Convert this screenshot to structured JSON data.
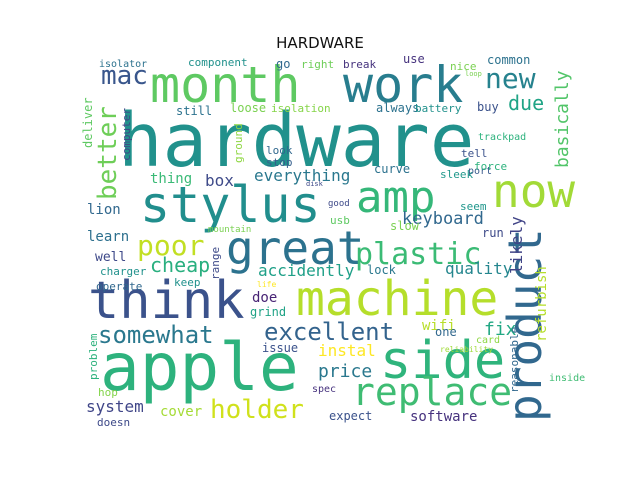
{
  "title": "HARDWARE",
  "words": [
    {
      "text": "hardware",
      "color": "#21918c"
    },
    {
      "text": "apple",
      "color": "#2db27d"
    },
    {
      "text": "think",
      "color": "#3b528b"
    },
    {
      "text": "machine",
      "color": "#b5de2b"
    },
    {
      "text": "month",
      "color": "#5ec962"
    },
    {
      "text": "work",
      "color": "#287d8e"
    },
    {
      "text": "stylus",
      "color": "#218e8d"
    },
    {
      "text": "great",
      "color": "#2c728e"
    },
    {
      "text": "side",
      "color": "#2fb47c"
    },
    {
      "text": "amp",
      "color": "#35b779"
    },
    {
      "text": "now",
      "color": "#a2da37"
    },
    {
      "text": "product",
      "color": "#31688e"
    },
    {
      "text": "replace",
      "color": "#3fbc73"
    },
    {
      "text": "poor",
      "color": "#c2df23"
    },
    {
      "text": "plastic",
      "color": "#3bbb75"
    },
    {
      "text": "excellent",
      "color": "#33638d"
    },
    {
      "text": "somewhat",
      "color": "#2a788e"
    },
    {
      "text": "holder",
      "color": "#d0e11c"
    },
    {
      "text": "better",
      "color": "#6ece58"
    },
    {
      "text": "mac",
      "color": "#39568c"
    },
    {
      "text": "new",
      "color": "#26828e"
    },
    {
      "text": "due",
      "color": "#20a486"
    },
    {
      "text": "basically",
      "color": "#52c569"
    },
    {
      "text": "cheap",
      "color": "#29af7f"
    },
    {
      "text": "accidently",
      "color": "#1fa088"
    },
    {
      "text": "quality",
      "color": "#24868e"
    },
    {
      "text": "keyboard",
      "color": "#31688e"
    },
    {
      "text": "likely",
      "color": "#414487"
    },
    {
      "text": "refurbish",
      "color": "#b5de2b"
    },
    {
      "text": "fix",
      "color": "#22a884"
    },
    {
      "text": "price",
      "color": "#2a788e"
    },
    {
      "text": "instal",
      "color": "#fde725"
    },
    {
      "text": "system",
      "color": "#404688"
    },
    {
      "text": "cover",
      "color": "#a5db36"
    },
    {
      "text": "software",
      "color": "#46327e"
    },
    {
      "text": "everything",
      "color": "#2a788e"
    },
    {
      "text": "box",
      "color": "#3e4a89"
    },
    {
      "text": "thing",
      "color": "#3aba76"
    },
    {
      "text": "lion",
      "color": "#31688e"
    },
    {
      "text": "learn",
      "color": "#2d708e"
    },
    {
      "text": "well",
      "color": "#3e4989"
    },
    {
      "text": "charger",
      "color": "#21918c"
    },
    {
      "text": "doe",
      "color": "#482475"
    },
    {
      "text": "grind",
      "color": "#20a386"
    },
    {
      "text": "wifi",
      "color": "#b8de29"
    },
    {
      "text": "issue",
      "color": "#3b528b"
    },
    {
      "text": "one",
      "color": "#31688e"
    },
    {
      "text": "card",
      "color": "#8fd744"
    },
    {
      "text": "reasonable",
      "color": "#31688e"
    },
    {
      "text": "inside",
      "color": "#3fbc73"
    },
    {
      "text": "component",
      "color": "#21918c"
    },
    {
      "text": "go",
      "color": "#31688e"
    },
    {
      "text": "right",
      "color": "#6ece58"
    },
    {
      "text": "break",
      "color": "#46337e"
    },
    {
      "text": "use",
      "color": "#46337e"
    },
    {
      "text": "nice",
      "color": "#7ad151"
    },
    {
      "text": "common",
      "color": "#2c728e"
    },
    {
      "text": "isolator",
      "color": "#2c728e"
    },
    {
      "text": "loose",
      "color": "#7ad151"
    },
    {
      "text": "isolation",
      "color": "#86d549"
    },
    {
      "text": "always",
      "color": "#2c728e"
    },
    {
      "text": "battery",
      "color": "#21918c"
    },
    {
      "text": "buy",
      "color": "#3b528b"
    },
    {
      "text": "still",
      "color": "#2c728e"
    },
    {
      "text": "deliver",
      "color": "#5ec962"
    },
    {
      "text": "computer",
      "color": "#404688"
    },
    {
      "text": "ground",
      "color": "#8fd744"
    },
    {
      "text": "look",
      "color": "#31688e"
    },
    {
      "text": "stop",
      "color": "#355f8d"
    },
    {
      "text": "tell",
      "color": "#3b528b"
    },
    {
      "text": "port",
      "color": "#38598c"
    },
    {
      "text": "trackpad",
      "color": "#2db27d"
    },
    {
      "text": "force",
      "color": "#2db27d"
    },
    {
      "text": "curve",
      "color": "#2c728e"
    },
    {
      "text": "sleek",
      "color": "#1f988b"
    },
    {
      "text": "seem",
      "color": "#1f968b"
    },
    {
      "text": "good",
      "color": "#3e4a89"
    },
    {
      "text": "usb",
      "color": "#5ec962"
    },
    {
      "text": "slow",
      "color": "#7ad151"
    },
    {
      "text": "run",
      "color": "#3e4a89"
    },
    {
      "text": "mountain",
      "color": "#7ad151"
    },
    {
      "text": "range",
      "color": "#3e4a89"
    },
    {
      "text": "keep",
      "color": "#21918c"
    },
    {
      "text": "life",
      "color": "#fde725"
    },
    {
      "text": "lock",
      "color": "#2a788e"
    },
    {
      "text": "operate",
      "color": "#31688e"
    },
    {
      "text": "problem",
      "color": "#2db27d"
    },
    {
      "text": "hop",
      "color": "#84d44b"
    },
    {
      "text": "spec",
      "color": "#46327e"
    },
    {
      "text": "expect",
      "color": "#3b528b"
    },
    {
      "text": "doesn",
      "color": "#3e4a89"
    },
    {
      "text": "reliability",
      "color": "#a0da39"
    },
    {
      "text": "loop",
      "color": "#7ad151"
    },
    {
      "text": "disk",
      "color": "#3e4a89"
    }
  ]
}
